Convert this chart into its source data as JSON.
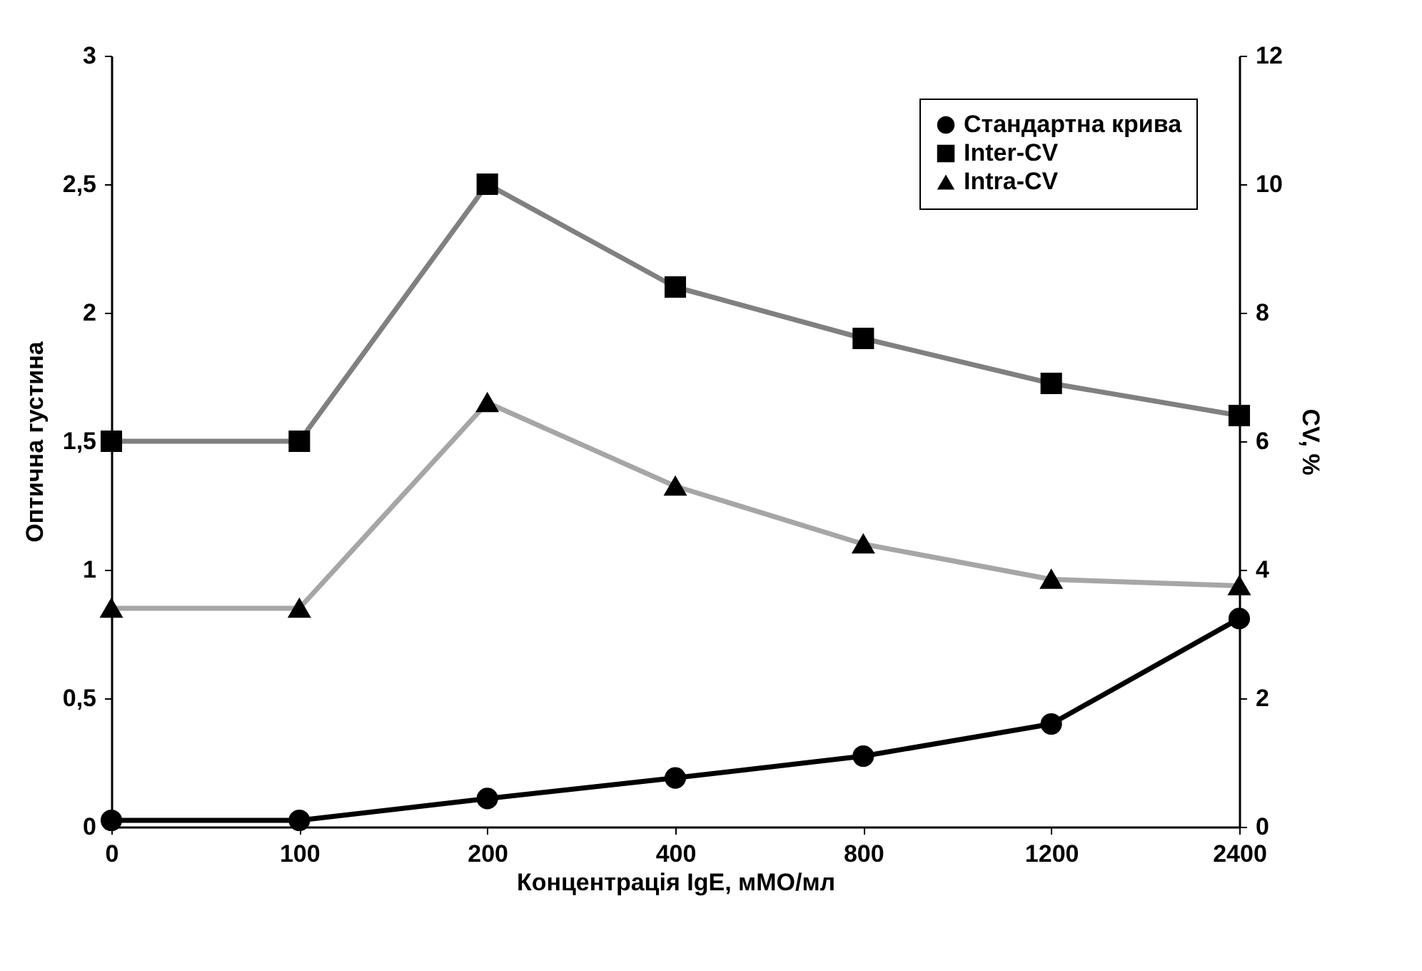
{
  "chart_data": {
    "type": "line",
    "xlabel": "Концентрація IgE, мМО/мл",
    "ylabel": "Оптична густина",
    "y2label": "CV, %",
    "categories": [
      "0",
      "100",
      "200",
      "400",
      "800",
      "1200",
      "2400"
    ],
    "series": [
      {
        "name": "Стандартна крива",
        "color": "#000000",
        "marker": "circle",
        "values": [
          0.025,
          0.025,
          0.11,
          0.19,
          0.275,
          0.4,
          0.81
        ]
      },
      {
        "name": "Inter-CV",
        "color": "#808080",
        "marker": "square",
        "axis": "y2",
        "values": [
          6.0,
          6.0,
          10.0,
          8.4,
          7.6,
          6.9,
          6.4
        ]
      },
      {
        "name": "Intra-CV",
        "color": "#a6a6a6",
        "marker": "triangle",
        "axis": "y2",
        "values": [
          3.4,
          3.4,
          6.6,
          5.3,
          4.4,
          3.85,
          3.75
        ]
      }
    ],
    "ylim": [
      0,
      3
    ],
    "yticks": [
      {
        "value": 0,
        "label": "0"
      },
      {
        "value": 0.5,
        "label": "0,5"
      },
      {
        "value": 1,
        "label": "1"
      },
      {
        "value": 1.5,
        "label": "1,5"
      },
      {
        "value": 2,
        "label": "2"
      },
      {
        "value": 2.5,
        "label": "2,5"
      },
      {
        "value": 3,
        "label": "3"
      }
    ],
    "y2lim": [
      0,
      12
    ],
    "y2ticks": [
      0,
      2,
      4,
      6,
      8,
      10,
      12
    ],
    "grid": false,
    "legend": "top right",
    "line_style": "solid"
  }
}
